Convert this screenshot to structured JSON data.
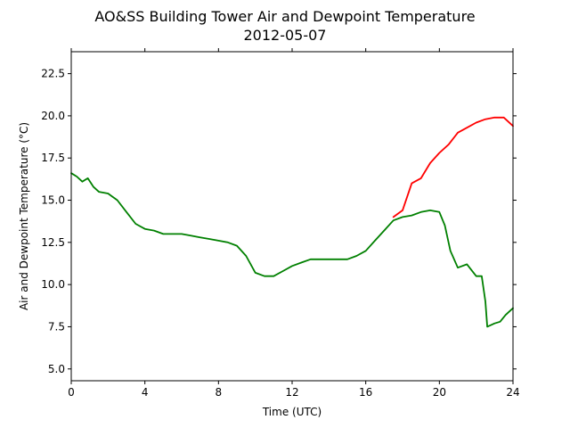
{
  "chart_data": {
    "type": "line",
    "title": "AO&SS Building Tower Air and Dewpoint Temperature",
    "subtitle": "2012-05-07",
    "xlabel": "Time (UTC)",
    "ylabel": "Air and Dewpoint Temperature (°C)",
    "xlim": [
      0,
      24
    ],
    "ylim": [
      4.3,
      23.8
    ],
    "xticks": [
      0,
      4,
      8,
      12,
      16,
      20,
      24
    ],
    "yticks": [
      5.0,
      7.5,
      10.0,
      12.5,
      15.0,
      17.5,
      20.0,
      22.5
    ],
    "grid": false,
    "series": [
      {
        "color": "#ff0000",
        "x": [
          17.5,
          18.0,
          18.5,
          19.0,
          19.5,
          20.0,
          20.5,
          21.0,
          21.5,
          22.0,
          22.5,
          23.0,
          23.5,
          24.0
        ],
        "y": [
          14.0,
          14.4,
          16.0,
          16.3,
          17.2,
          17.8,
          18.3,
          19.0,
          19.3,
          19.6,
          19.8,
          19.9,
          19.9,
          19.4
        ]
      },
      {
        "color": "#008000",
        "x": [
          0.0,
          0.3,
          0.6,
          0.9,
          1.2,
          1.5,
          2.0,
          2.5,
          3.0,
          3.5,
          4.0,
          4.5,
          5.0,
          5.5,
          6.0,
          6.5,
          7.0,
          7.5,
          8.0,
          8.5,
          9.0,
          9.5,
          10.0,
          10.5,
          11.0,
          11.5,
          12.0,
          12.5,
          13.0,
          13.5,
          14.0,
          14.5,
          15.0,
          15.5,
          16.0,
          16.5,
          17.0,
          17.5,
          18.0,
          18.5,
          19.0,
          19.5,
          20.0,
          20.3,
          20.6,
          21.0,
          21.5,
          22.0,
          22.3,
          22.5,
          22.6,
          22.8,
          23.0,
          23.3,
          23.6,
          24.0
        ],
        "y": [
          16.6,
          16.4,
          16.1,
          16.3,
          15.8,
          15.5,
          15.4,
          15.0,
          14.3,
          13.6,
          13.3,
          13.2,
          13.0,
          13.0,
          13.0,
          12.9,
          12.8,
          12.7,
          12.6,
          12.5,
          12.3,
          11.7,
          10.7,
          10.5,
          10.5,
          10.8,
          11.1,
          11.3,
          11.5,
          11.5,
          11.5,
          11.5,
          11.5,
          11.7,
          12.0,
          12.6,
          13.2,
          13.8,
          14.0,
          14.1,
          14.3,
          14.4,
          14.3,
          13.5,
          12.0,
          11.0,
          11.2,
          10.5,
          10.5,
          9.0,
          7.5,
          7.6,
          7.7,
          7.8,
          8.2,
          8.6
        ]
      }
    ]
  }
}
